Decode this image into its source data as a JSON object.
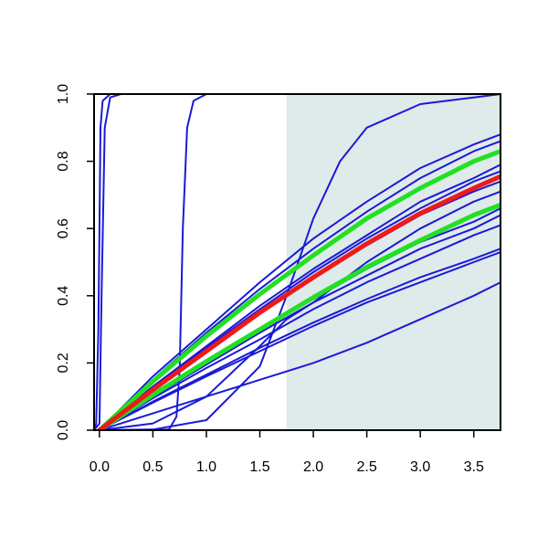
{
  "chart_data": {
    "type": "line",
    "title": "",
    "xlabel": "",
    "ylabel": "",
    "xlim": [
      -0.05,
      3.75
    ],
    "ylim": [
      0,
      1
    ],
    "x_ticks": [
      "0.0",
      "0.5",
      "1.0",
      "1.5",
      "2.0",
      "2.5",
      "3.0",
      "3.5"
    ],
    "y_ticks": [
      "0.0",
      "0.2",
      "0.4",
      "0.6",
      "0.8",
      "1.0"
    ],
    "shaded_region": {
      "x_from": 1.75,
      "x_to": 3.75,
      "color": "#dfeaea"
    },
    "colors": {
      "blue": "#1a1ad6",
      "green": "#22e022",
      "red": "#ee1a1a"
    },
    "series": [
      {
        "color": "blue",
        "kind": "steep_logistic",
        "points": [
          [
            -0.05,
            0
          ],
          [
            -0.03,
            0.02
          ],
          [
            -0.01,
            0.3
          ],
          [
            0.0,
            0.6
          ],
          [
            0.01,
            0.9
          ],
          [
            0.03,
            0.98
          ],
          [
            0.1,
            1.0
          ],
          [
            3.75,
            1.0
          ]
        ]
      },
      {
        "color": "blue",
        "kind": "steep_logistic",
        "points": [
          [
            -0.05,
            0
          ],
          [
            0.0,
            0.02
          ],
          [
            0.02,
            0.4
          ],
          [
            0.05,
            0.9
          ],
          [
            0.1,
            0.99
          ],
          [
            0.2,
            1.0
          ],
          [
            3.75,
            1.0
          ]
        ]
      },
      {
        "color": "blue",
        "kind": "step",
        "points": [
          [
            0.0,
            0
          ],
          [
            0.5,
            0
          ],
          [
            0.65,
            0.002
          ],
          [
            0.72,
            0.04
          ],
          [
            0.75,
            0.18
          ],
          [
            0.78,
            0.6
          ],
          [
            0.82,
            0.9
          ],
          [
            0.88,
            0.98
          ],
          [
            1.0,
            1.0
          ],
          [
            3.75,
            1.0
          ]
        ]
      },
      {
        "color": "blue",
        "kind": "sigmoid",
        "points": [
          [
            0.0,
            0
          ],
          [
            0.5,
            0.002
          ],
          [
            1.0,
            0.03
          ],
          [
            1.5,
            0.19
          ],
          [
            1.75,
            0.4
          ],
          [
            2.0,
            0.63
          ],
          [
            2.25,
            0.8
          ],
          [
            2.5,
            0.9
          ],
          [
            3.0,
            0.97
          ],
          [
            3.5,
            0.99
          ],
          [
            3.75,
            1.0
          ]
        ]
      },
      {
        "color": "blue",
        "kind": "concave",
        "points": [
          [
            0.0,
            0
          ],
          [
            0.5,
            0.16
          ],
          [
            1.0,
            0.3
          ],
          [
            1.5,
            0.44
          ],
          [
            2.0,
            0.57
          ],
          [
            2.5,
            0.68
          ],
          [
            3.0,
            0.78
          ],
          [
            3.5,
            0.85
          ],
          [
            3.75,
            0.88
          ]
        ]
      },
      {
        "color": "blue",
        "kind": "concave",
        "points": [
          [
            0.0,
            0
          ],
          [
            0.5,
            0.15
          ],
          [
            1.0,
            0.29
          ],
          [
            1.5,
            0.42
          ],
          [
            2.0,
            0.54
          ],
          [
            2.5,
            0.65
          ],
          [
            3.0,
            0.75
          ],
          [
            3.5,
            0.83
          ],
          [
            3.75,
            0.86
          ]
        ]
      },
      {
        "color": "blue",
        "kind": "concave",
        "points": [
          [
            0.0,
            0
          ],
          [
            0.5,
            0.13
          ],
          [
            1.0,
            0.25
          ],
          [
            1.5,
            0.37
          ],
          [
            2.0,
            0.48
          ],
          [
            2.5,
            0.58
          ],
          [
            3.0,
            0.68
          ],
          [
            3.5,
            0.75
          ],
          [
            3.75,
            0.79
          ]
        ]
      },
      {
        "color": "blue",
        "kind": "concave",
        "points": [
          [
            0.0,
            0
          ],
          [
            0.5,
            0.125
          ],
          [
            1.0,
            0.245
          ],
          [
            1.5,
            0.36
          ],
          [
            2.0,
            0.47
          ],
          [
            2.5,
            0.57
          ],
          [
            3.0,
            0.66
          ],
          [
            3.5,
            0.74
          ],
          [
            3.75,
            0.77
          ]
        ]
      },
      {
        "color": "blue",
        "kind": "concave",
        "points": [
          [
            0.0,
            0
          ],
          [
            0.5,
            0.12
          ],
          [
            1.0,
            0.235
          ],
          [
            1.5,
            0.35
          ],
          [
            2.0,
            0.455
          ],
          [
            2.5,
            0.55
          ],
          [
            3.0,
            0.64
          ],
          [
            3.5,
            0.71
          ],
          [
            3.75,
            0.74
          ]
        ]
      },
      {
        "color": "blue",
        "kind": "concave",
        "points": [
          [
            0.0,
            0
          ],
          [
            0.5,
            0.105
          ],
          [
            1.0,
            0.2
          ],
          [
            1.5,
            0.3
          ],
          [
            2.0,
            0.39
          ],
          [
            2.5,
            0.48
          ],
          [
            3.0,
            0.56
          ],
          [
            3.5,
            0.62
          ],
          [
            3.75,
            0.66
          ]
        ]
      },
      {
        "color": "blue",
        "kind": "concave",
        "points": [
          [
            0.0,
            0
          ],
          [
            0.5,
            0.1
          ],
          [
            1.0,
            0.195
          ],
          [
            1.5,
            0.29
          ],
          [
            2.0,
            0.38
          ],
          [
            2.5,
            0.46
          ],
          [
            3.0,
            0.54
          ],
          [
            3.5,
            0.6
          ],
          [
            3.75,
            0.64
          ]
        ]
      },
      {
        "color": "blue",
        "kind": "concave",
        "points": [
          [
            0.0,
            0
          ],
          [
            0.5,
            0.095
          ],
          [
            1.0,
            0.185
          ],
          [
            1.5,
            0.27
          ],
          [
            2.0,
            0.36
          ],
          [
            2.5,
            0.44
          ],
          [
            3.0,
            0.51
          ],
          [
            3.5,
            0.58
          ],
          [
            3.75,
            0.61
          ]
        ]
      },
      {
        "color": "blue",
        "kind": "concave",
        "points": [
          [
            0.0,
            0
          ],
          [
            0.5,
            0.085
          ],
          [
            1.0,
            0.165
          ],
          [
            1.5,
            0.245
          ],
          [
            2.0,
            0.32
          ],
          [
            2.5,
            0.39
          ],
          [
            3.0,
            0.455
          ],
          [
            3.5,
            0.51
          ],
          [
            3.75,
            0.54
          ]
        ]
      },
      {
        "color": "blue",
        "kind": "concave",
        "points": [
          [
            0.0,
            0
          ],
          [
            0.5,
            0.082
          ],
          [
            1.0,
            0.16
          ],
          [
            1.5,
            0.235
          ],
          [
            2.0,
            0.31
          ],
          [
            2.5,
            0.38
          ],
          [
            3.0,
            0.44
          ],
          [
            3.5,
            0.5
          ],
          [
            3.75,
            0.53
          ]
        ]
      },
      {
        "color": "blue",
        "kind": "sigmoid",
        "points": [
          [
            0.0,
            0
          ],
          [
            0.5,
            0.02
          ],
          [
            1.0,
            0.1
          ],
          [
            1.5,
            0.25
          ],
          [
            1.75,
            0.33
          ],
          [
            2.0,
            0.38
          ],
          [
            2.5,
            0.5
          ],
          [
            3.0,
            0.6
          ],
          [
            3.5,
            0.68
          ],
          [
            3.75,
            0.71
          ]
        ]
      },
      {
        "color": "blue",
        "kind": "concave",
        "points": [
          [
            0.0,
            0
          ],
          [
            0.5,
            0.05
          ],
          [
            1.0,
            0.1
          ],
          [
            1.5,
            0.15
          ],
          [
            2.0,
            0.2
          ],
          [
            2.5,
            0.26
          ],
          [
            3.0,
            0.33
          ],
          [
            3.5,
            0.4
          ],
          [
            3.75,
            0.44
          ]
        ]
      },
      {
        "color": "green",
        "kind": "concave",
        "points": [
          [
            0.0,
            0
          ],
          [
            0.5,
            0.145
          ],
          [
            1.0,
            0.28
          ],
          [
            1.5,
            0.405
          ],
          [
            2.0,
            0.52
          ],
          [
            2.5,
            0.63
          ],
          [
            3.0,
            0.72
          ],
          [
            3.5,
            0.8
          ],
          [
            3.75,
            0.83
          ]
        ]
      },
      {
        "color": "green",
        "kind": "concave",
        "points": [
          [
            0.0,
            0
          ],
          [
            0.5,
            0.105
          ],
          [
            1.0,
            0.205
          ],
          [
            1.5,
            0.3
          ],
          [
            2.0,
            0.395
          ],
          [
            2.5,
            0.485
          ],
          [
            3.0,
            0.565
          ],
          [
            3.5,
            0.64
          ],
          [
            3.75,
            0.67
          ]
        ]
      },
      {
        "color": "red",
        "kind": "concave",
        "points": [
          [
            0.0,
            0
          ],
          [
            0.5,
            0.12
          ],
          [
            1.0,
            0.235
          ],
          [
            1.5,
            0.35
          ],
          [
            2.0,
            0.455
          ],
          [
            2.5,
            0.555
          ],
          [
            3.0,
            0.645
          ],
          [
            3.5,
            0.72
          ],
          [
            3.75,
            0.755
          ]
        ]
      }
    ]
  }
}
